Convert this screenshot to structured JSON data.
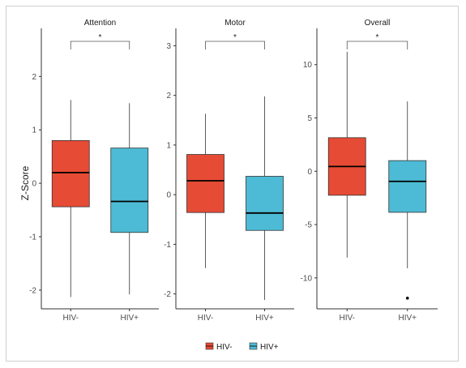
{
  "chart_data": {
    "type": "boxplot",
    "ylabel": "Z-Score",
    "categories": [
      "HIV-",
      "HIV+"
    ],
    "colors": {
      "HIV-": "#E64B35",
      "HIV+": "#4DBBD5"
    },
    "legend": {
      "position": "bottom",
      "entries": [
        "HIV-",
        "HIV+"
      ]
    },
    "grid": false,
    "panels": [
      {
        "title": "Attention",
        "ylim": [
          -2.35,
          2.9
        ],
        "yticks": [
          -2,
          -1,
          0,
          1,
          2
        ],
        "significance": "*",
        "boxes": [
          {
            "group": "HIV-",
            "min": -2.13,
            "q1": -0.44,
            "median": 0.2,
            "q3": 0.8,
            "max": 1.56,
            "outliers": []
          },
          {
            "group": "HIV+",
            "min": -2.08,
            "q1": -0.92,
            "median": -0.34,
            "q3": 0.66,
            "max": 1.5,
            "outliers": []
          }
        ]
      },
      {
        "title": "Motor",
        "ylim": [
          -2.3,
          3.35
        ],
        "yticks": [
          -2,
          -1,
          0,
          1,
          2,
          3
        ],
        "significance": "*",
        "boxes": [
          {
            "group": "HIV-",
            "min": -1.48,
            "q1": -0.36,
            "median": 0.28,
            "q3": 0.81,
            "max": 1.63,
            "outliers": []
          },
          {
            "group": "HIV+",
            "min": -2.12,
            "q1": -0.72,
            "median": -0.37,
            "q3": 0.37,
            "max": 1.98,
            "outliers": []
          }
        ]
      },
      {
        "title": "Overall",
        "ylim": [
          -12.9,
          13.4
        ],
        "yticks": [
          -10,
          -5,
          0,
          5,
          10
        ],
        "significance": "*",
        "boxes": [
          {
            "group": "HIV-",
            "min": -8.1,
            "q1": -2.25,
            "median": 0.45,
            "q3": 3.15,
            "max": 11.2,
            "outliers": []
          },
          {
            "group": "HIV+",
            "min": -9.1,
            "q1": -3.85,
            "median": -0.95,
            "q3": 1.0,
            "max": 6.55,
            "outliers": [
              -11.9
            ]
          }
        ]
      }
    ]
  }
}
